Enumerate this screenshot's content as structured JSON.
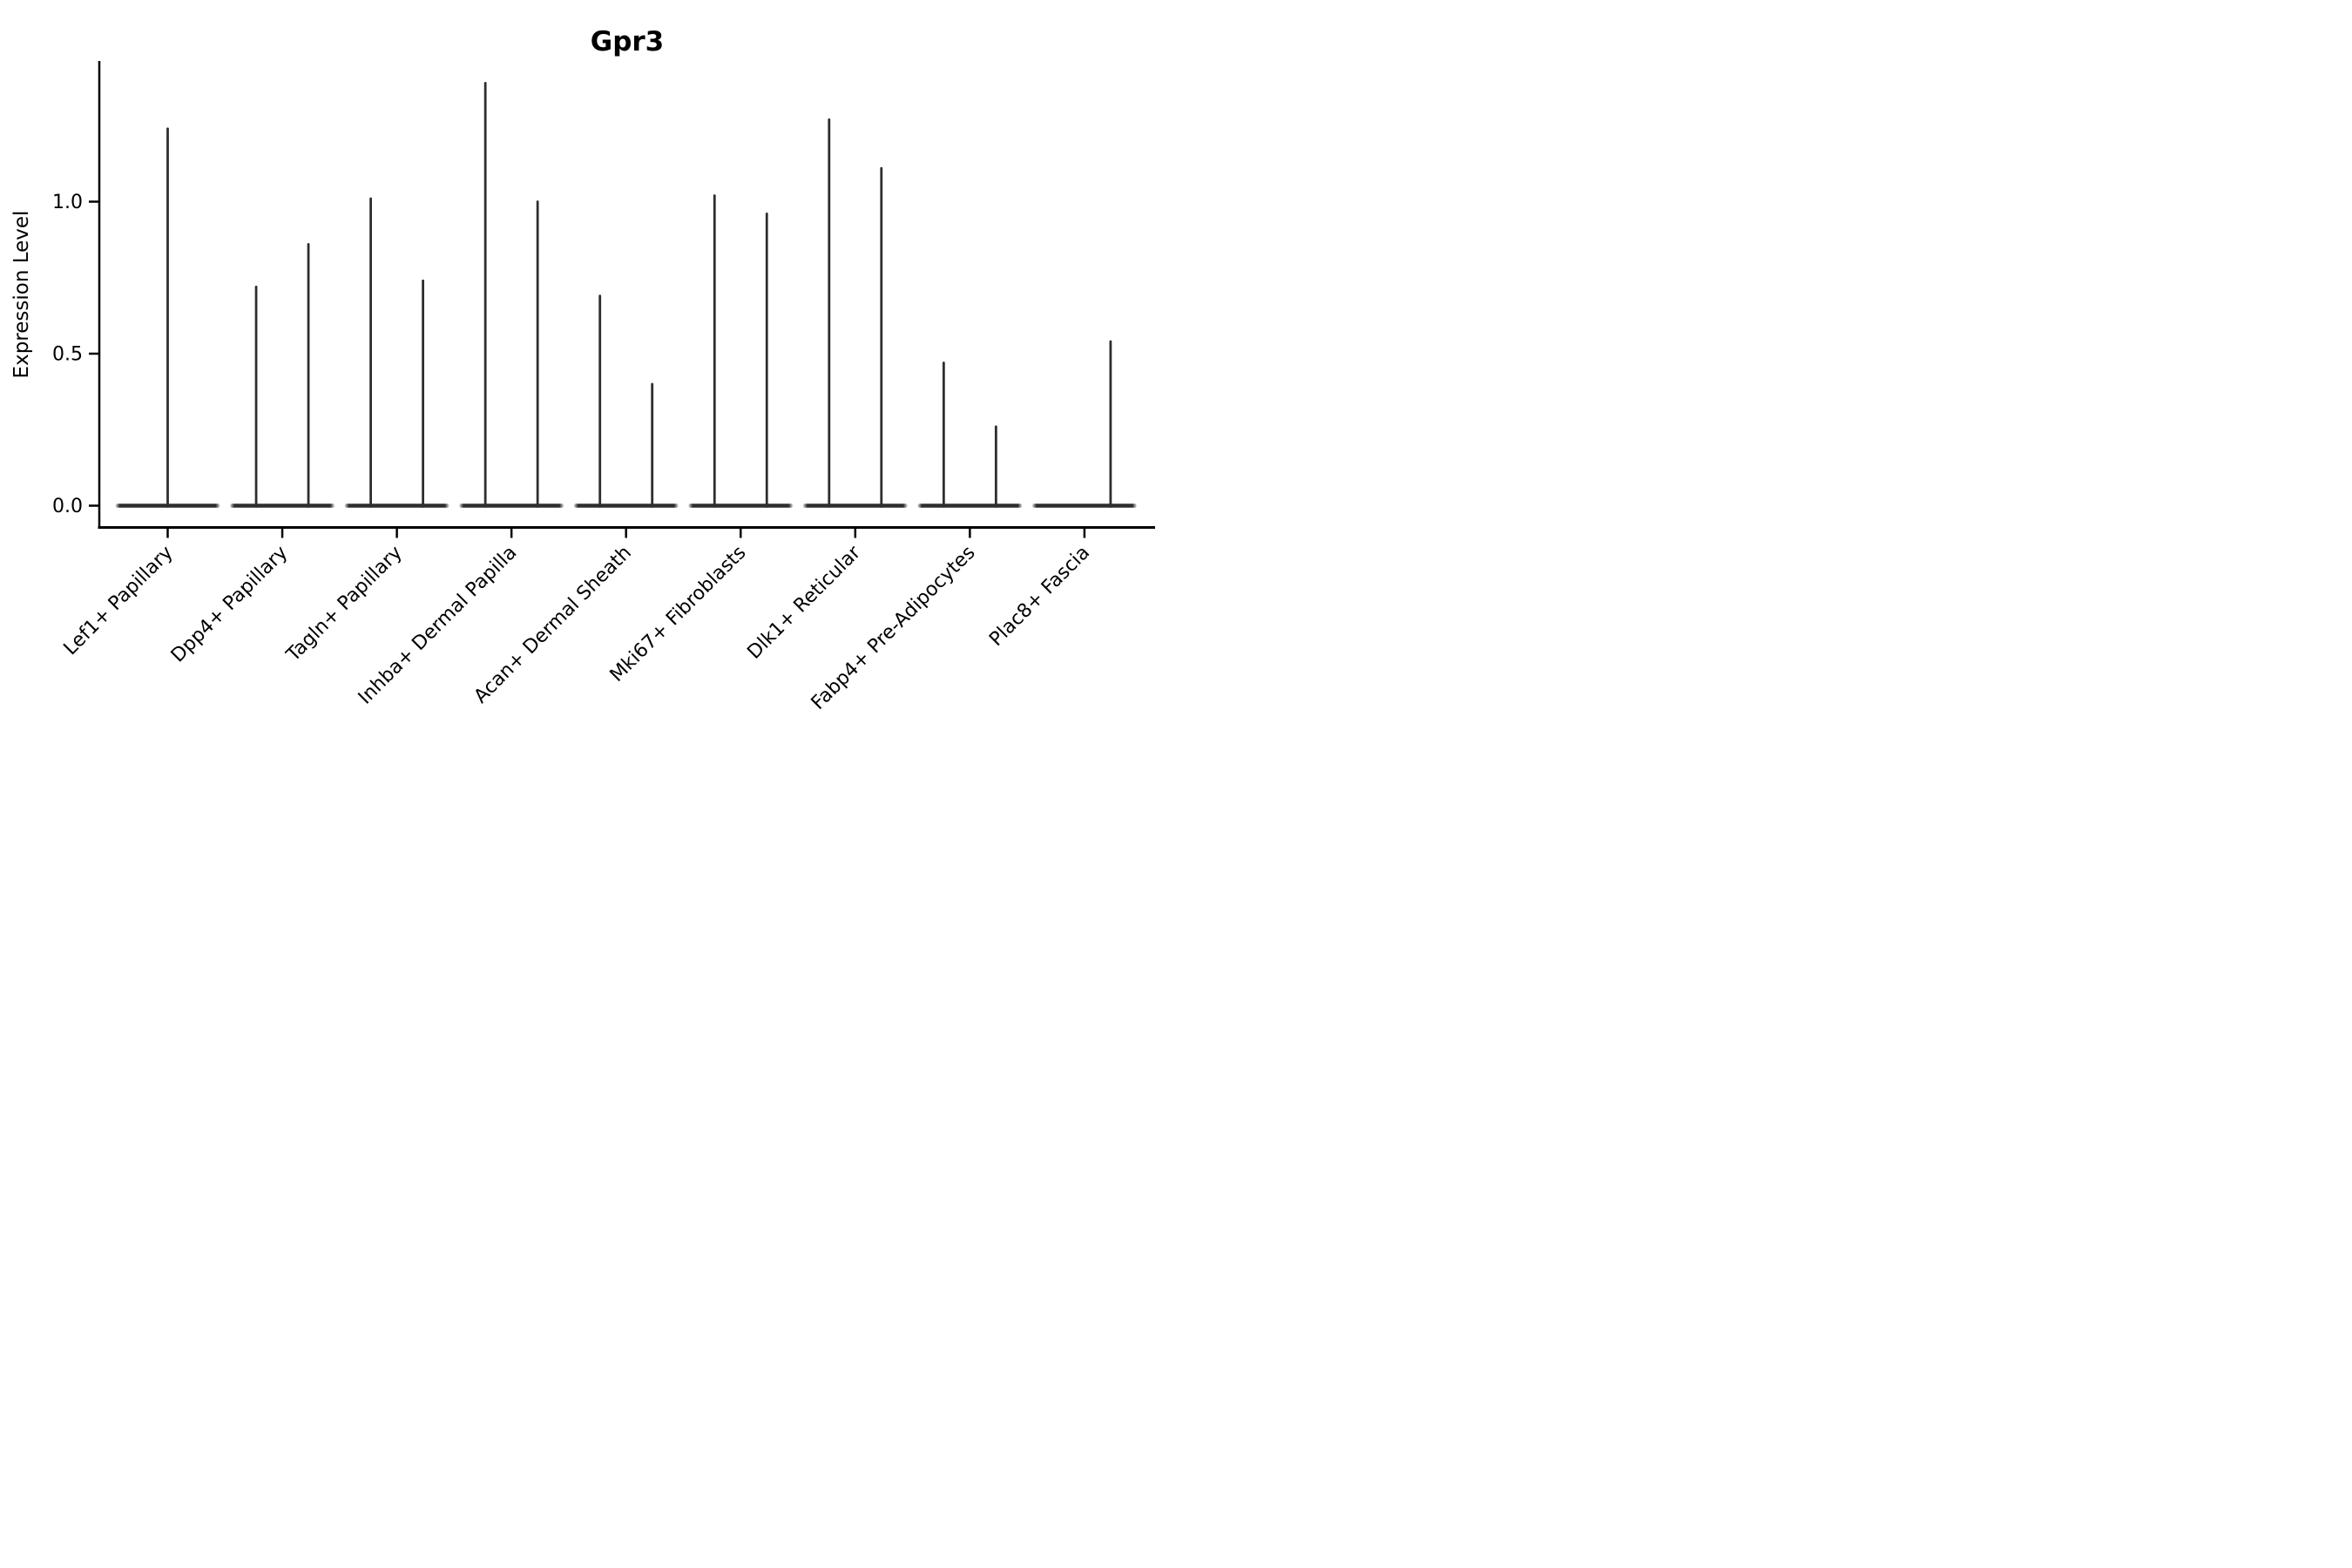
{
  "figure": {
    "background": "#ffffff"
  },
  "chart_data": {
    "type": "violin",
    "title": "Gpr3",
    "xlabel": "",
    "ylabel": "Expression Level",
    "ylim": [
      -0.07,
      1.46
    ],
    "ytick_values": [
      0.0,
      0.5,
      1.0
    ],
    "ytick_labels": [
      "0.0",
      "0.5",
      "1.0"
    ],
    "grid": false,
    "legend": "none",
    "description": "Needle-thin violins: each violin collapses to a flat bar at 0 expression plus a thin vertical spike up to its maximum expression value. Categories with two violins show them dodged left/right of the category tick.",
    "categories": [
      "Lef1+ Papillary",
      "Dpp4+ Papillary",
      "Tagln+ Papillary",
      "Inhba+ Dermal Papilla",
      "Acan+ Dermal Sheath",
      "Mki67+ Fibroblasts",
      "Dlk1+ Reticular",
      "Fabp4+ Pre-Adipocytes",
      "Plac8+ Fascia"
    ],
    "series": [
      {
        "category": "Lef1+ Papillary",
        "violins": [
          {
            "position": "center",
            "max": 1.24
          }
        ]
      },
      {
        "category": "Dpp4+ Papillary",
        "violins": [
          {
            "position": "left",
            "max": 0.72
          },
          {
            "position": "right",
            "max": 0.86
          }
        ]
      },
      {
        "category": "Tagln+ Papillary",
        "violins": [
          {
            "position": "left",
            "max": 1.01
          },
          {
            "position": "right",
            "max": 0.74
          }
        ]
      },
      {
        "category": "Inhba+ Dermal Papilla",
        "violins": [
          {
            "position": "left",
            "max": 1.39
          },
          {
            "position": "right",
            "max": 1.0
          }
        ]
      },
      {
        "category": "Acan+ Dermal Sheath",
        "violins": [
          {
            "position": "left",
            "max": 0.69
          },
          {
            "position": "right",
            "max": 0.4
          }
        ]
      },
      {
        "category": "Mki67+ Fibroblasts",
        "violins": [
          {
            "position": "left",
            "max": 1.02
          },
          {
            "position": "right",
            "max": 0.96
          }
        ]
      },
      {
        "category": "Dlk1+ Reticular",
        "violins": [
          {
            "position": "left",
            "max": 1.27
          },
          {
            "position": "right",
            "max": 1.11
          }
        ]
      },
      {
        "category": "Fabp4+ Pre-Adipocytes",
        "violins": [
          {
            "position": "left",
            "max": 0.47
          },
          {
            "position": "right",
            "max": 0.26
          }
        ]
      },
      {
        "category": "Plac8+ Fascia",
        "violins": [
          {
            "position": "left",
            "max": 0.0
          },
          {
            "position": "right",
            "max": 0.54
          }
        ]
      }
    ],
    "colors": {
      "violin": "#2e2e2e",
      "axis": "#000000",
      "text": "#000000",
      "background": "#ffffff"
    }
  }
}
